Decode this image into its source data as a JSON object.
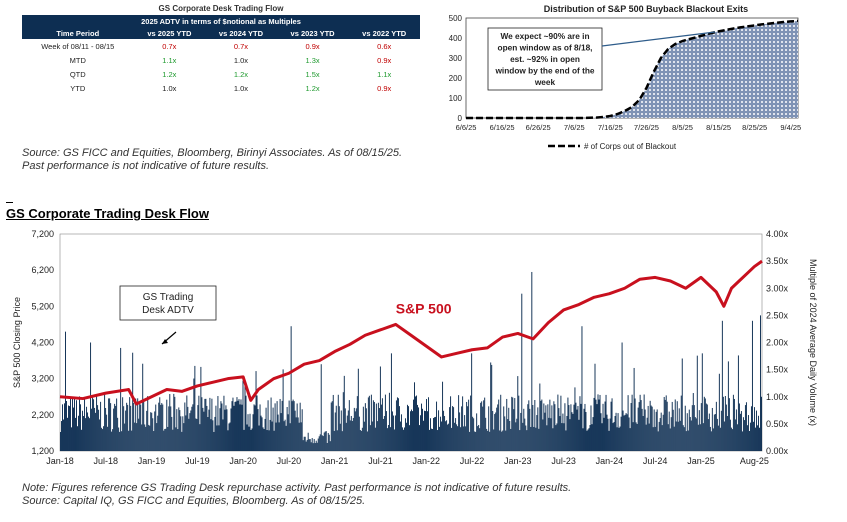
{
  "table": {
    "title": "GS Corporate Desk Trading Flow",
    "subtitle": "2025 ADTV in terms of $notional as Multiples",
    "columns": [
      "Time Period",
      "vs 2025 YTD",
      "vs 2024 YTD",
      "vs 2023 YTD",
      "vs 2022 YTD"
    ],
    "rows": [
      {
        "label": "Week of 08/11 - 08/15",
        "cells": [
          {
            "v": "0.7x",
            "c": "red"
          },
          {
            "v": "0.7x",
            "c": "red"
          },
          {
            "v": "0.9x",
            "c": "red"
          },
          {
            "v": "0.6x",
            "c": "red"
          }
        ]
      },
      {
        "label": "MTD",
        "cells": [
          {
            "v": "1.1x",
            "c": "green"
          },
          {
            "v": "1.0x",
            "c": "black"
          },
          {
            "v": "1.3x",
            "c": "green"
          },
          {
            "v": "0.9x",
            "c": "red"
          }
        ]
      },
      {
        "label": "QTD",
        "cells": [
          {
            "v": "1.2x",
            "c": "green"
          },
          {
            "v": "1.2x",
            "c": "green"
          },
          {
            "v": "1.5x",
            "c": "green"
          },
          {
            "v": "1.1x",
            "c": "green"
          }
        ]
      },
      {
        "label": "YTD",
        "cells": [
          {
            "v": "1.0x",
            "c": "black"
          },
          {
            "v": "1.0x",
            "c": "black"
          },
          {
            "v": "1.2x",
            "c": "green"
          },
          {
            "v": "0.9x",
            "c": "red"
          }
        ]
      }
    ]
  },
  "source_top_1": "Source: GS FICC and Equities, Bloomberg, Birinyi Associates. As of 08/15/25.",
  "source_top_2": "Past performance is not indicative of future results.",
  "section_title": "GS Corporate Trading Desk Flow",
  "note_1": "Note: Figures reference GS Trading Desk repurchase activity. Past performance is not indicative of future results.",
  "note_2": "Source: Capital IQ, GS FICC and Equities, Bloomberg. As of 08/15/25.",
  "colors": {
    "navy": "#0d2e52",
    "sp_red": "#c8101e",
    "area_fill": "#a9b8cf"
  },
  "chart_data": [
    {
      "type": "area",
      "title": "Distribution of S&P 500 Buyback Blackout Exits",
      "x_ticks": [
        "6/6/25",
        "6/16/25",
        "6/26/25",
        "7/6/25",
        "7/16/25",
        "7/26/25",
        "8/5/25",
        "8/15/25",
        "8/25/25",
        "9/4/25"
      ],
      "ylim": [
        0,
        500
      ],
      "y_ticks": [
        0,
        100,
        200,
        300,
        400,
        500
      ],
      "legend": "# of Corps out of Blackout",
      "annotation": [
        "We expect ~90% are in",
        "open window as of 8/18,",
        "est. ~92% in open",
        "window by the end of the",
        "week"
      ],
      "x": [
        0,
        4,
        8,
        12,
        16,
        20,
        24,
        28,
        32,
        36,
        38,
        40,
        42,
        44,
        46,
        48,
        50,
        52,
        54,
        56,
        58,
        60,
        62,
        64,
        66,
        68,
        70,
        72,
        74,
        76,
        78,
        80,
        82,
        84,
        86,
        88,
        90,
        92
      ],
      "values": [
        0,
        0,
        0,
        0,
        0,
        0,
        0,
        0,
        0,
        2,
        5,
        10,
        20,
        35,
        55,
        90,
        150,
        230,
        300,
        345,
        370,
        385,
        395,
        405,
        415,
        425,
        433,
        440,
        447,
        453,
        458,
        463,
        468,
        472,
        476,
        480,
        483,
        485
      ]
    },
    {
      "type": "bar+line",
      "title": "GS Corporate Trading Desk Flow",
      "x_ticks": [
        "Jan-18",
        "Jul-18",
        "Jan-19",
        "Jul-19",
        "Jan-20",
        "Jul-20",
        "Jan-21",
        "Jul-21",
        "Jan-22",
        "Jul-22",
        "Jan-23",
        "Jul-23",
        "Jan-24",
        "Jul-24",
        "Jan-25",
        "Aug-25"
      ],
      "ylabel_left": "S&P 500 Closing Price",
      "ylabel_right": "Multiple of 2024 Average Daily Volume (x)",
      "ylim_left": [
        1200,
        7200
      ],
      "y_ticks_left": [
        "1,200",
        "2,200",
        "3,200",
        "4,200",
        "5,200",
        "6,200",
        "7,200"
      ],
      "ylim_right": [
        0,
        4
      ],
      "y_ticks_right": [
        "0.00x",
        "0.50x",
        "1.00x",
        "1.50x",
        "2.00x",
        "2.50x",
        "3.00x",
        "3.50x",
        "4.00x"
      ],
      "sp500_label": "S&P 500",
      "adtv_callout": [
        "GS Trading",
        "Desk ADTV"
      ],
      "sp500_months": [
        0,
        3,
        6,
        9,
        10,
        12,
        14,
        16,
        18,
        20,
        22,
        24,
        25,
        26,
        27,
        28,
        30,
        32,
        34,
        36,
        38,
        40,
        42,
        44,
        46,
        48,
        50,
        52,
        54,
        56,
        58,
        60,
        62,
        64,
        66,
        68,
        70,
        72,
        74,
        76,
        78,
        80,
        82,
        84,
        86,
        87,
        88,
        89,
        90,
        91,
        92
      ],
      "sp500_values": [
        2700,
        2650,
        2800,
        2900,
        2500,
        2700,
        2900,
        2850,
        3000,
        3100,
        3200,
        3250,
        2600,
        2900,
        3050,
        3200,
        3350,
        3600,
        3700,
        3950,
        4150,
        4400,
        4550,
        4700,
        4400,
        4100,
        3800,
        3900,
        4000,
        4050,
        4350,
        4450,
        4300,
        4750,
        5100,
        5250,
        5450,
        5550,
        5700,
        5950,
        6000,
        5900,
        5700,
        6000,
        5600,
        5200,
        5700,
        5900,
        6100,
        6300,
        6450
      ]
    }
  ]
}
